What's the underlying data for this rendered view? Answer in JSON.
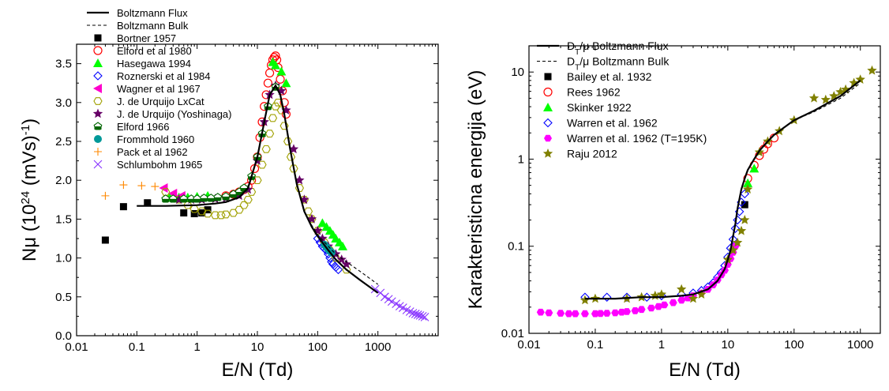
{
  "chart_data": [
    {
      "type": "scatter",
      "title": "",
      "xlabel": "E/N (Td)",
      "ylabel": "Nμ (10^24 (mVs)^-1)",
      "ylabel_main": "Nμ",
      "ylabel_unit": "(10",
      "ylabel_exp1": "24",
      "ylabel_unit2": " (mVs)",
      "ylabel_exp2": "-1",
      "ylabel_close": ")",
      "xscale": "log",
      "yscale": "linear",
      "xlim": [
        0.01,
        10000
      ],
      "ylim": [
        0.0,
        3.75
      ],
      "xticks": [
        0.01,
        0.1,
        1,
        10,
        100,
        1000
      ],
      "xtick_labels": [
        "0.01",
        "0.1",
        "1",
        "10",
        "100",
        "1000"
      ],
      "yticks": [
        0.0,
        0.5,
        1.0,
        1.5,
        2.0,
        2.5,
        3.0,
        3.5
      ],
      "ytick_labels": [
        "0.0",
        "0.5",
        "1.0",
        "1.5",
        "2.0",
        "2.5",
        "3.0",
        "3.5"
      ],
      "grid": false,
      "legend_position": "top-left",
      "series": [
        {
          "name": "Boltzmann Flux",
          "style": "line-solid",
          "color": "#000000",
          "x": [
            0.1,
            0.3,
            1,
            2,
            3,
            5,
            7,
            10,
            13,
            16,
            20,
            24,
            28,
            35,
            45,
            60,
            80,
            100,
            150,
            200,
            300,
            500,
            1000
          ],
          "y": [
            1.67,
            1.67,
            1.68,
            1.7,
            1.72,
            1.78,
            1.9,
            2.3,
            2.75,
            3.1,
            3.22,
            3.1,
            2.85,
            2.4,
            1.95,
            1.6,
            1.4,
            1.28,
            1.1,
            0.98,
            0.85,
            0.72,
            0.55
          ]
        },
        {
          "name": "Boltzmann Bulk",
          "style": "line-dashed",
          "color": "#000000",
          "x": [
            0.1,
            0.3,
            1,
            2,
            3,
            5,
            7,
            10,
            13,
            16,
            20,
            24,
            28,
            35,
            45,
            60,
            80,
            100,
            150,
            200,
            300,
            500,
            1000
          ],
          "y": [
            1.67,
            1.67,
            1.68,
            1.7,
            1.72,
            1.78,
            1.9,
            2.3,
            2.75,
            3.1,
            3.2,
            3.1,
            2.85,
            2.4,
            1.95,
            1.6,
            1.42,
            1.3,
            1.15,
            1.05,
            0.95,
            0.83,
            0.66
          ]
        },
        {
          "name": "Bortner 1957",
          "marker": "square-filled",
          "color": "#000000",
          "x": [
            0.03,
            0.06,
            0.15,
            0.6,
            0.9,
            1.2,
            1.5
          ],
          "y": [
            1.23,
            1.66,
            1.71,
            1.58,
            1.57,
            1.58,
            1.62
          ]
        },
        {
          "name": "Elford et al 1980",
          "marker": "circle-open",
          "color": "#ff0000",
          "x": [
            3,
            4,
            5,
            6,
            7,
            8,
            9,
            10,
            11,
            12,
            13,
            14,
            15,
            16,
            17,
            18,
            19,
            20,
            21,
            22,
            24,
            26,
            28,
            30
          ],
          "y": [
            1.8,
            1.82,
            1.85,
            1.88,
            1.92,
            2.0,
            2.15,
            2.3,
            2.55,
            2.75,
            2.95,
            3.1,
            3.25,
            3.38,
            3.48,
            3.55,
            3.58,
            3.6,
            3.55,
            3.45,
            3.3,
            3.15,
            3.0,
            2.85
          ]
        },
        {
          "name": "Hasegawa 1994",
          "marker": "triangle-filled",
          "color": "#00ff00",
          "x": [
            0.35,
            0.5,
            0.7,
            1,
            1.5,
            18,
            20,
            25,
            30,
            120,
            140,
            160,
            180,
            200,
            230,
            260
          ],
          "y": [
            1.78,
            1.78,
            1.78,
            1.79,
            1.8,
            3.52,
            3.48,
            3.4,
            3.25,
            1.45,
            1.4,
            1.35,
            1.3,
            1.25,
            1.2,
            1.15
          ]
        },
        {
          "name": "Roznerski et al 1984",
          "marker": "diamond-open",
          "color": "#0000ff",
          "x": [
            100,
            110,
            120,
            130,
            140,
            150,
            160,
            170,
            180,
            200,
            220
          ],
          "y": [
            1.25,
            1.2,
            1.15,
            1.12,
            1.1,
            1.05,
            1.0,
            0.95,
            0.92,
            0.88,
            0.85
          ]
        },
        {
          "name": "Wagner et al 1967",
          "marker": "triangle-left-filled",
          "color": "#ff00cc",
          "x": [
            0.28,
            0.4,
            0.55
          ],
          "y": [
            1.9,
            1.83,
            1.8
          ]
        },
        {
          "name": "J. de Urquijo LxCat",
          "marker": "hexagon-open",
          "color": "#a0a000",
          "x": [
            0.3,
            0.5,
            0.7,
            0.9,
            1.2,
            1.5,
            2,
            2.5,
            3,
            4,
            5,
            6,
            7,
            8,
            10,
            12,
            14,
            16,
            18,
            20,
            22,
            25,
            28,
            32,
            36,
            40,
            50,
            60,
            70,
            80,
            100,
            130,
            160,
            200,
            300
          ],
          "y": [
            1.85,
            1.75,
            1.68,
            1.63,
            1.6,
            1.57,
            1.55,
            1.55,
            1.56,
            1.58,
            1.62,
            1.68,
            1.75,
            1.85,
            2.0,
            2.2,
            2.4,
            2.6,
            2.8,
            2.95,
            3.0,
            2.9,
            2.7,
            2.5,
            2.3,
            2.15,
            1.9,
            1.75,
            1.6,
            1.5,
            1.35,
            1.2,
            1.1,
            1.0,
            0.85
          ]
        },
        {
          "name": "J. de Urquijo (Yoshinaga)",
          "marker": "star-filled",
          "color": "#660066",
          "x": [
            0.5,
            0.8,
            1.2,
            2,
            3,
            5,
            7,
            10,
            13,
            16,
            20,
            25,
            30,
            40,
            50,
            60,
            80,
            100,
            120,
            150,
            200,
            250,
            300
          ],
          "y": [
            1.75,
            1.75,
            1.75,
            1.76,
            1.77,
            1.8,
            1.88,
            2.25,
            2.75,
            3.1,
            3.22,
            3.15,
            2.9,
            2.4,
            2.0,
            1.75,
            1.5,
            1.35,
            1.25,
            1.15,
            1.05,
            0.98,
            0.92
          ]
        },
        {
          "name": "Elford 1966",
          "marker": "pentagon-half",
          "color": "#006600",
          "x": [
            0.3,
            0.4,
            0.6,
            0.8,
            1,
            1.3,
            1.7,
            2.2,
            3,
            4,
            5,
            6,
            8,
            10,
            12,
            15,
            20
          ],
          "y": [
            1.76,
            1.76,
            1.76,
            1.76,
            1.76,
            1.77,
            1.77,
            1.78,
            1.79,
            1.82,
            1.85,
            1.9,
            2.05,
            2.3,
            2.6,
            2.95,
            3.2
          ]
        },
        {
          "name": "Frommhold 1960",
          "marker": "circle-filled",
          "color": "#009999",
          "x": [
            130,
            140,
            150,
            160,
            170
          ],
          "y": [
            1.17,
            1.14,
            1.11,
            1.09,
            1.07
          ]
        },
        {
          "name": "Pack et al 1962",
          "marker": "plus",
          "color": "#ff8800",
          "x": [
            0.03,
            0.06,
            0.12,
            0.2
          ],
          "y": [
            1.8,
            1.94,
            1.93,
            1.92
          ]
        },
        {
          "name": "Schlumbohm 1965",
          "marker": "x",
          "color": "#8833ff",
          "x": [
            900,
            1100,
            1300,
            1500,
            1700,
            2000,
            2300,
            2600,
            3000,
            3400,
            3800,
            4200,
            4600,
            5000,
            5500,
            6000
          ],
          "y": [
            0.6,
            0.55,
            0.5,
            0.47,
            0.44,
            0.41,
            0.38,
            0.36,
            0.33,
            0.31,
            0.29,
            0.28,
            0.27,
            0.26,
            0.25,
            0.24
          ]
        }
      ]
    },
    {
      "type": "scatter",
      "title": "",
      "xlabel": "E/N (Td)",
      "ylabel": "Karakteristicna energija (eV)",
      "xscale": "log",
      "yscale": "log",
      "xlim": [
        0.01,
        2000
      ],
      "ylim": [
        0.01,
        20
      ],
      "xticks": [
        0.01,
        0.1,
        1,
        10,
        100,
        1000
      ],
      "xtick_labels": [
        "0.01",
        "0.1",
        "1",
        "10",
        "100",
        "1000"
      ],
      "yticks": [
        0.01,
        0.1,
        1,
        10
      ],
      "ytick_labels": [
        "0.01",
        "0.1",
        "1",
        "10"
      ],
      "grid": false,
      "legend_position": "top-left",
      "series": [
        {
          "name": "DT/μ Boltzmann Flux",
          "name_main": "D",
          "name_sub": "T",
          "name_rest": "/μ Boltzmann Flux",
          "style": "line-solid",
          "color": "#000000",
          "x": [
            0.07,
            0.2,
            0.5,
            1,
            2,
            3,
            5,
            7,
            9,
            10,
            11,
            12,
            13,
            14,
            15,
            16,
            18,
            20,
            25,
            30,
            40,
            50,
            70,
            100,
            200,
            500,
            1000
          ],
          "y": [
            0.025,
            0.025,
            0.026,
            0.026,
            0.027,
            0.028,
            0.032,
            0.04,
            0.055,
            0.07,
            0.09,
            0.13,
            0.18,
            0.27,
            0.35,
            0.45,
            0.6,
            0.75,
            1.0,
            1.25,
            1.6,
            1.9,
            2.3,
            2.8,
            3.6,
            5.3,
            8.0
          ]
        },
        {
          "name": "DT/μ Boltzmann Bulk",
          "name_main": "D",
          "name_sub": "T",
          "name_rest": "/μ Boltzmann Bulk",
          "style": "line-dashed",
          "color": "#000000",
          "x": [
            0.07,
            0.2,
            0.5,
            1,
            2,
            3,
            5,
            7,
            9,
            10,
            11,
            12,
            13,
            14,
            15,
            16,
            18,
            20,
            25,
            30,
            40,
            50,
            70,
            100,
            200,
            500,
            1000
          ],
          "y": [
            0.025,
            0.025,
            0.026,
            0.026,
            0.027,
            0.028,
            0.032,
            0.04,
            0.055,
            0.07,
            0.09,
            0.13,
            0.18,
            0.27,
            0.35,
            0.45,
            0.6,
            0.75,
            1.0,
            1.25,
            1.6,
            1.9,
            2.3,
            2.8,
            3.5,
            5.0,
            7.5
          ]
        },
        {
          "name": "Bailey et al. 1932",
          "marker": "square-filled",
          "color": "#000000",
          "x": [
            18
          ],
          "y": [
            0.3
          ]
        },
        {
          "name": "Rees 1962",
          "marker": "circle-open",
          "color": "#ff0000",
          "x": [
            20,
            25,
            30,
            35,
            40,
            50
          ],
          "y": [
            0.6,
            0.85,
            1.1,
            1.3,
            1.5,
            1.75
          ]
        },
        {
          "name": "Skinker 1922",
          "marker": "triangle-filled",
          "color": "#00ff00",
          "x": [
            20,
            25
          ],
          "y": [
            0.53,
            0.78
          ]
        },
        {
          "name": "Warren et al. 1962",
          "marker": "diamond-open",
          "color": "#0000ff",
          "x": [
            0.07,
            0.15,
            0.3,
            0.6,
            1,
            2,
            3,
            4,
            5,
            6,
            7,
            8,
            9,
            10,
            11,
            12,
            13,
            14,
            15,
            16,
            18
          ],
          "y": [
            0.026,
            0.026,
            0.026,
            0.026,
            0.027,
            0.028,
            0.029,
            0.031,
            0.034,
            0.038,
            0.044,
            0.05,
            0.06,
            0.075,
            0.095,
            0.12,
            0.16,
            0.2,
            0.25,
            0.32,
            0.4
          ]
        },
        {
          "name": "Warren et al. 1962 (T=195K)",
          "marker": "hexagon-filled",
          "color": "#ff00ff",
          "x": [
            0.015,
            0.02,
            0.03,
            0.04,
            0.05,
            0.07,
            0.1,
            0.12,
            0.15,
            0.2,
            0.25,
            0.3,
            0.4,
            0.5,
            0.7,
            0.9,
            1.1,
            1.5,
            2,
            2.5,
            3,
            4,
            5,
            6,
            7,
            8,
            9,
            10,
            11,
            12,
            13
          ],
          "y": [
            0.0175,
            0.0172,
            0.017,
            0.0168,
            0.0168,
            0.0168,
            0.0168,
            0.0169,
            0.017,
            0.0172,
            0.0175,
            0.0178,
            0.0182,
            0.0188,
            0.0195,
            0.0203,
            0.0212,
            0.0225,
            0.024,
            0.0255,
            0.027,
            0.029,
            0.032,
            0.036,
            0.041,
            0.047,
            0.053,
            0.062,
            0.072,
            0.085,
            0.1
          ]
        },
        {
          "name": "Raju 2012",
          "marker": "star-filled",
          "color": "#808000",
          "x": [
            0.07,
            0.1,
            0.3,
            0.5,
            0.8,
            1.0,
            2,
            3,
            4,
            10,
            12,
            14,
            16,
            18,
            20,
            30,
            40,
            60,
            100,
            200,
            300,
            400,
            500,
            600,
            800,
            1000,
            1500
          ],
          "y": [
            0.024,
            0.025,
            0.025,
            0.026,
            0.027,
            0.028,
            0.032,
            0.025,
            0.028,
            0.07,
            0.09,
            0.11,
            0.15,
            0.2,
            0.45,
            1.2,
            1.6,
            2.1,
            2.8,
            5.0,
            4.8,
            5.3,
            5.9,
            6.3,
            7.5,
            8.2,
            10.4
          ]
        }
      ]
    }
  ]
}
